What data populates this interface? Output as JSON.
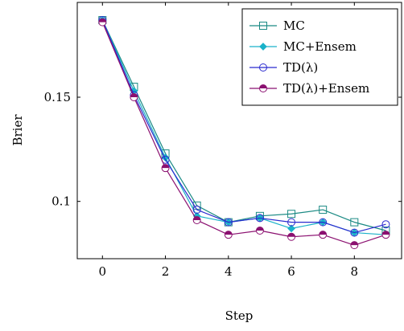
{
  "chart_data": {
    "type": "line",
    "title": "",
    "xlabel": "Step",
    "ylabel": "Brier",
    "xlim": [
      -0.8,
      9.5
    ],
    "ylim": [
      0.0725,
      0.1955
    ],
    "xticks": [
      0,
      2,
      4,
      6,
      8
    ],
    "xtick_labels": [
      "0",
      "2",
      "4",
      "6",
      "8"
    ],
    "yticks": [
      0.1,
      0.15
    ],
    "ytick_labels": [
      "0.1",
      "0.15"
    ],
    "grid": false,
    "legend_position": "top-right",
    "x": [
      0,
      1,
      2,
      3,
      4,
      5,
      6,
      7,
      8,
      9
    ],
    "series": [
      {
        "name": "MC",
        "color": "#1b8a84",
        "marker": "square",
        "values": [
          0.187,
          0.155,
          0.123,
          0.098,
          0.09,
          0.093,
          0.094,
          0.096,
          0.09,
          0.086
        ]
      },
      {
        "name": "MC+Ensem",
        "color": "#1ab2c9",
        "marker": "diamond",
        "values": [
          0.187,
          0.153,
          0.121,
          0.093,
          0.09,
          0.092,
          0.087,
          0.09,
          0.085,
          0.084
        ]
      },
      {
        "name": "TD(λ)",
        "color": "#2a2acf",
        "marker": "circle",
        "values": [
          0.187,
          0.151,
          0.12,
          0.096,
          0.09,
          0.092,
          0.09,
          0.09,
          0.085,
          0.089
        ]
      },
      {
        "name": "TD(λ)+Ensem",
        "color": "#8b1070",
        "marker": "half-circle",
        "values": [
          0.186,
          0.15,
          0.116,
          0.091,
          0.084,
          0.086,
          0.083,
          0.084,
          0.079,
          0.084
        ]
      }
    ]
  }
}
